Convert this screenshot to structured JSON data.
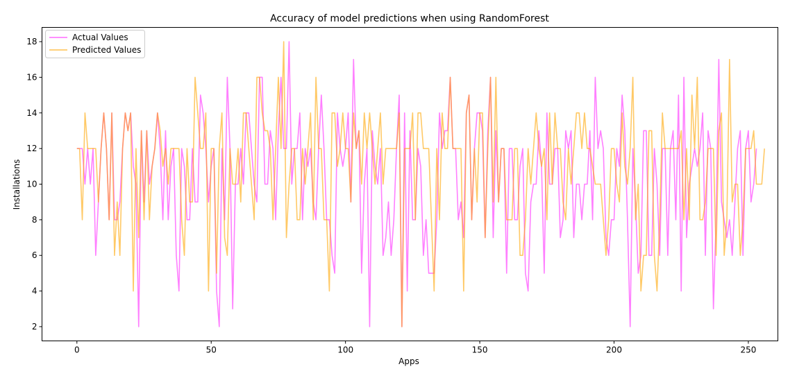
{
  "chart_data": {
    "type": "line",
    "title": "Accuracy of model predictions when using RandomForest",
    "xlabel": "Apps",
    "ylabel": "Installations",
    "xlim": [
      -13,
      261
    ],
    "ylim": [
      1.2,
      18.8
    ],
    "xticks": [
      0,
      50,
      100,
      150,
      200,
      250
    ],
    "yticks": [
      2,
      4,
      6,
      8,
      10,
      12,
      14,
      16,
      18
    ],
    "grid": false,
    "legend_position": "top-left",
    "series": [
      {
        "name": "Actual Values",
        "color": "#ff00ff",
        "opacity": 0.5,
        "values": [
          12,
          12,
          12,
          10,
          12,
          10,
          12,
          6,
          9,
          12,
          14,
          12,
          8,
          14,
          8,
          8,
          9,
          12,
          14,
          13,
          14,
          11,
          10,
          2,
          13,
          9,
          13,
          10,
          11,
          12,
          14,
          12,
          8,
          13,
          8,
          11,
          12,
          6,
          4,
          12,
          11,
          8,
          8,
          12,
          9,
          9,
          15,
          14,
          12,
          9,
          11,
          12,
          4,
          2,
          12,
          8,
          16,
          12,
          3,
          10,
          10,
          12,
          10,
          14,
          14,
          12,
          10,
          9,
          16,
          16,
          10,
          10,
          13,
          12,
          8,
          13,
          16,
          12,
          12,
          18,
          10,
          12,
          12,
          14,
          8,
          12,
          11,
          12,
          9,
          8,
          12,
          15,
          12,
          8,
          8,
          6,
          5,
          14,
          12,
          11,
          12,
          14,
          9,
          17,
          12,
          13,
          5,
          10,
          12,
          2,
          13,
          11,
          10,
          12,
          6,
          7,
          9,
          6,
          8,
          12,
          15,
          2,
          14,
          4,
          13,
          8,
          8,
          12,
          11,
          6,
          8,
          5,
          5,
          5,
          8,
          14,
          12,
          13,
          13,
          16,
          12,
          12,
          8,
          9,
          7,
          14,
          15,
          8,
          12,
          14,
          14,
          13,
          7,
          13,
          16,
          7,
          13,
          9,
          12,
          12,
          5,
          12,
          12,
          8,
          8,
          11,
          12,
          5,
          4,
          9,
          10,
          10,
          13,
          11,
          5,
          14,
          10,
          10,
          12,
          12,
          7,
          8,
          13,
          12,
          13,
          7,
          10,
          10,
          8,
          10,
          10,
          13,
          8,
          16,
          12,
          13,
          12,
          7,
          6,
          8,
          8,
          12,
          11,
          15,
          13,
          8,
          2,
          12,
          9,
          5,
          6,
          13,
          13,
          6,
          6,
          12,
          10,
          6,
          12,
          12,
          6,
          12,
          13,
          8,
          15,
          4,
          16,
          7,
          10,
          11,
          12,
          11,
          12,
          14,
          6,
          13,
          12,
          3,
          8,
          17,
          9,
          8,
          7,
          8,
          6,
          9,
          12,
          13,
          6,
          12,
          13,
          9,
          10,
          12
        ]
      },
      {
        "name": "Predicted Values",
        "color": "#ffa500",
        "opacity": 0.6,
        "values": [
          12,
          12,
          8,
          14,
          12,
          12,
          12,
          12,
          9,
          12,
          14,
          12,
          8,
          14,
          6,
          9,
          6,
          12,
          14,
          13,
          14,
          4,
          12,
          7,
          13,
          8,
          13,
          8,
          11,
          12,
          14,
          13,
          11,
          12,
          10,
          12,
          12,
          12,
          12,
          8,
          6,
          12,
          9,
          9,
          16,
          14,
          12,
          12,
          14,
          4,
          12,
          12,
          5,
          12,
          14,
          7,
          6,
          12,
          10,
          10,
          12,
          9,
          14,
          14,
          12,
          10,
          8,
          16,
          16,
          14,
          13,
          13,
          12,
          8,
          12,
          16,
          12,
          18,
          7,
          10,
          12,
          12,
          8,
          8,
          12,
          10,
          12,
          14,
          8,
          16,
          12,
          12,
          8,
          8,
          4,
          14,
          14,
          11,
          12,
          14,
          12,
          12,
          9,
          14,
          12,
          13,
          10,
          14,
          12,
          14,
          12,
          10,
          12,
          14,
          10,
          12,
          12,
          12,
          12,
          12,
          14,
          2,
          12,
          12,
          12,
          14,
          8,
          14,
          14,
          12,
          12,
          12,
          8,
          4,
          12,
          8,
          14,
          12,
          12,
          16,
          12,
          12,
          12,
          12,
          4,
          14,
          15,
          8,
          12,
          9,
          14,
          14,
          7,
          12,
          16,
          9,
          16,
          9,
          12,
          12,
          8,
          8,
          8,
          12,
          12,
          6,
          6,
          8,
          12,
          10,
          12,
          14,
          12,
          11,
          12,
          8,
          14,
          10,
          14,
          12,
          12,
          9,
          8,
          12,
          10,
          12,
          14,
          14,
          12,
          14,
          12,
          12,
          11,
          10,
          10,
          10,
          8,
          6,
          8,
          12,
          12,
          10,
          9,
          14,
          11,
          10,
          12,
          16,
          8,
          10,
          4,
          6,
          6,
          13,
          13,
          6,
          4,
          8,
          14,
          12,
          12,
          12,
          12,
          12,
          12,
          13,
          8,
          12,
          8,
          15,
          12,
          16,
          8,
          8,
          9,
          12,
          12,
          12,
          6,
          13,
          14,
          6,
          8,
          17,
          9,
          10,
          10,
          6,
          8,
          12,
          12,
          12,
          13,
          10,
          10,
          10,
          12
        ]
      }
    ]
  }
}
